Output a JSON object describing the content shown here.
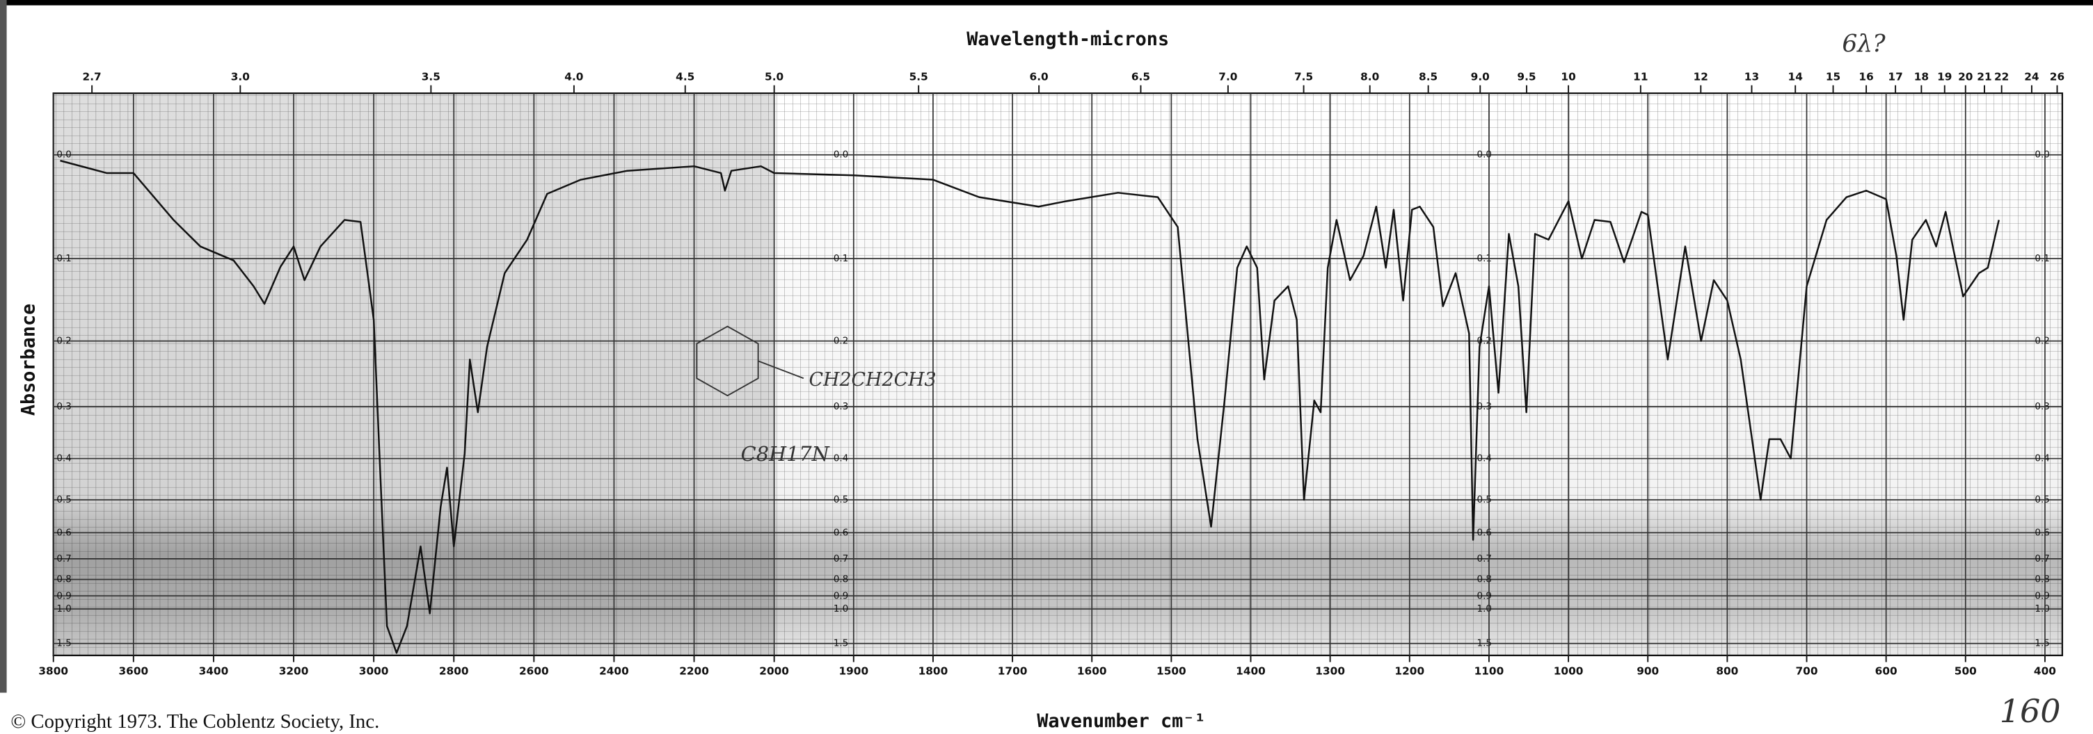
{
  "chart_data": {
    "type": "line",
    "title": "Wavelength-microns",
    "x_label": "Wavenumber cm⁻¹",
    "y_label": "Absorbance",
    "copyright": "© Copyright 1973. The Coblentz Society, Inc.",
    "annotations": [
      "C8H17N",
      "CH2CH2CH3",
      "6λ?",
      "160"
    ],
    "color": "#111111",
    "grid": true,
    "xlim": [
      3800,
      400
    ],
    "x_scale_break": 2000,
    "xticks": [
      3800,
      3600,
      3400,
      3200,
      3000,
      2800,
      2600,
      2400,
      2200,
      2000,
      1900,
      1800,
      1700,
      1600,
      1500,
      1400,
      1300,
      1200,
      1100,
      1000,
      900,
      800,
      700,
      600,
      500,
      400
    ],
    "x2ticks": [
      2.7,
      {
        "value": 3,
        "label": "3.0"
      },
      3.5,
      {
        "value": 4,
        "label": "4.0"
      },
      4.5,
      {
        "value": 5,
        "label": "5.0"
      },
      5.5,
      {
        "value": 6,
        "label": "6.0"
      },
      6.5,
      {
        "value": 7,
        "label": "7.0"
      },
      7.5,
      {
        "value": 8,
        "label": "8.0"
      },
      8.5,
      {
        "value": 9,
        "label": "9.0"
      },
      9.5,
      10,
      11,
      12,
      13,
      14,
      15,
      16,
      17,
      18,
      19,
      20,
      21,
      22,
      24,
      26
    ],
    "yscale": "absorbance",
    "ylim": [
      -0.05,
      2.1
    ],
    "yticks": [
      {
        "value": 0,
        "label": "0.0"
      },
      0.1,
      0.2,
      0.3,
      0.4,
      0.5,
      0.6,
      0.7,
      0.8,
      0.9,
      {
        "value": 1,
        "label": "1.0"
      },
      1.5
    ],
    "x": [
      3783,
      3667,
      3600,
      3500,
      3433,
      3350,
      3300,
      3273,
      3233,
      3200,
      3173,
      3133,
      3073,
      3033,
      3000,
      2983,
      2967,
      2943,
      2917,
      2883,
      2860,
      2833,
      2817,
      2800,
      2773,
      2760,
      2740,
      2717,
      2673,
      2617,
      2567,
      2483,
      2367,
      2200,
      2133,
      2123,
      2107,
      2033,
      2000,
      1900,
      1800,
      1742,
      1667,
      1633,
      1567,
      1517,
      1492,
      1467,
      1450,
      1433,
      1417,
      1405,
      1392,
      1383,
      1370,
      1353,
      1342,
      1333,
      1320,
      1312,
      1303,
      1292,
      1275,
      1258,
      1242,
      1230,
      1220,
      1208,
      1197,
      1187,
      1170,
      1158,
      1142,
      1125,
      1120,
      1112,
      1100,
      1088,
      1075,
      1063,
      1053,
      1042,
      1025,
      1000,
      983,
      967,
      947,
      930,
      908,
      900,
      875,
      853,
      833,
      817,
      800,
      783,
      758,
      747,
      733,
      720,
      700,
      675,
      650,
      625,
      600,
      587,
      578,
      567,
      550,
      537,
      525,
      503,
      483,
      472,
      458
    ],
    "values": [
      0.005,
      0.016,
      0.016,
      0.06,
      0.087,
      0.102,
      0.131,
      0.152,
      0.109,
      0.087,
      0.124,
      0.087,
      0.06,
      0.062,
      0.172,
      0.449,
      1.18,
      1.89,
      1.18,
      0.65,
      1.04,
      0.52,
      0.42,
      0.65,
      0.39,
      0.226,
      0.31,
      0.208,
      0.116,
      0.08,
      0.035,
      0.022,
      0.014,
      0.01,
      0.016,
      0.032,
      0.014,
      0.01,
      0.016,
      0.018,
      0.022,
      0.038,
      0.047,
      0.042,
      0.034,
      0.038,
      0.067,
      0.36,
      0.58,
      0.29,
      0.11,
      0.087,
      0.11,
      0.256,
      0.148,
      0.131,
      0.172,
      0.5,
      0.29,
      0.31,
      0.11,
      0.06,
      0.124,
      0.097,
      0.047,
      0.11,
      0.05,
      0.148,
      0.05,
      0.047,
      0.067,
      0.155,
      0.116,
      0.19,
      0.625,
      0.208,
      0.131,
      0.277,
      0.074,
      0.131,
      0.31,
      0.074,
      0.08,
      0.042,
      0.1,
      0.06,
      0.062,
      0.104,
      0.052,
      0.055,
      0.226,
      0.087,
      0.2,
      0.124,
      0.148,
      0.226,
      0.5,
      0.36,
      0.36,
      0.4,
      0.131,
      0.06,
      0.038,
      0.032,
      0.04,
      0.097,
      0.172,
      0.08,
      0.06,
      0.087,
      0.052,
      0.143,
      0.116,
      0.11,
      0.06
    ]
  }
}
